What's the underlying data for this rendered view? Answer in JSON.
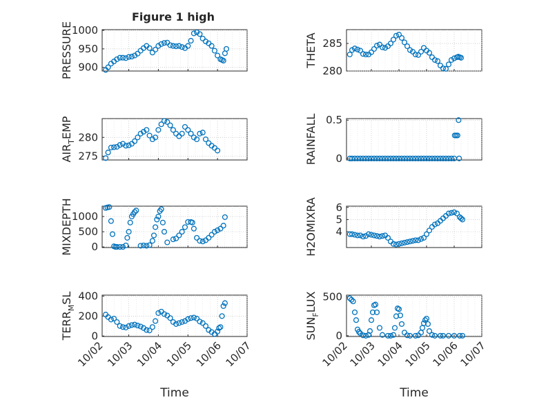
{
  "figure_title": "Figure 1 high",
  "chart_data": [
    {
      "type": "scatter",
      "id": "pressure",
      "ylabel": "PRESSURE",
      "ylabel_sub": "",
      "ylabel_tail": "",
      "yticks": [
        900,
        950,
        1000
      ],
      "ytick_labels": [
        "900",
        "950",
        "1000"
      ],
      "ylim": [
        890,
        1002
      ],
      "xlim": [
        0.1,
        5
      ],
      "x_tick_labels_shown": false,
      "x": [
        0.22,
        0.3,
        0.4,
        0.5,
        0.6,
        0.7,
        0.8,
        0.9,
        1.0,
        1.1,
        1.2,
        1.3,
        1.4,
        1.5,
        1.6,
        1.7,
        1.8,
        1.9,
        2.0,
        2.1,
        2.2,
        2.3,
        2.4,
        2.5,
        2.6,
        2.7,
        2.8,
        2.9,
        3.0,
        3.1,
        3.2,
        3.3,
        3.4,
        3.5,
        3.6,
        3.7,
        3.8,
        3.9,
        4.0,
        4.1,
        4.15,
        4.2,
        4.25,
        4.3
      ],
      "y": [
        893,
        900,
        910,
        916,
        922,
        926,
        926,
        925,
        928,
        929,
        932,
        937,
        945,
        952,
        958,
        952,
        940,
        948,
        958,
        963,
        966,
        967,
        960,
        958,
        957,
        958,
        955,
        952,
        958,
        972,
        992,
        995,
        990,
        978,
        970,
        965,
        958,
        945,
        932,
        922,
        920,
        918,
        938,
        950
      ]
    },
    {
      "type": "scatter",
      "id": "theta",
      "ylabel": "THETA",
      "ylabel_sub": "",
      "ylabel_tail": "",
      "yticks": [
        280,
        285
      ],
      "ytick_labels": [
        "280",
        "285"
      ],
      "ylim": [
        280,
        287.5
      ],
      "xlim": [
        0.1,
        5
      ],
      "x_tick_labels_shown": false,
      "x": [
        0.22,
        0.3,
        0.4,
        0.5,
        0.6,
        0.7,
        0.8,
        0.9,
        1.0,
        1.1,
        1.2,
        1.3,
        1.4,
        1.5,
        1.6,
        1.7,
        1.8,
        1.9,
        2.0,
        2.1,
        2.2,
        2.3,
        2.4,
        2.5,
        2.6,
        2.7,
        2.8,
        2.9,
        3.0,
        3.1,
        3.2,
        3.3,
        3.4,
        3.5,
        3.6,
        3.7,
        3.8,
        3.9,
        4.0,
        4.1,
        4.15,
        4.2,
        4.25
      ],
      "y": [
        283,
        283.8,
        284.1,
        283.9,
        283.7,
        283.1,
        283,
        283,
        283.4,
        284,
        284.6,
        284.8,
        284.3,
        284.2,
        284.5,
        285,
        285.7,
        286.4,
        286.6,
        286,
        285.2,
        284.5,
        283.8,
        283.5,
        283,
        282.9,
        283.5,
        284.2,
        283.7,
        283.3,
        282.5,
        282,
        281.8,
        281,
        280.5,
        280.4,
        281.2,
        282,
        282.3,
        282.5,
        282.6,
        282.5,
        282.4
      ]
    },
    {
      "type": "scatter",
      "id": "air_temp",
      "ylabel": "AIR",
      "ylabel_sub": "T",
      "ylabel_tail": "EMP",
      "yticks": [
        275,
        280
      ],
      "ytick_labels": [
        "275",
        "280"
      ],
      "ylim": [
        274,
        285
      ],
      "xlim": [
        0.1,
        5
      ],
      "x_tick_labels_shown": false,
      "x": [
        0.22,
        0.3,
        0.4,
        0.5,
        0.6,
        0.7,
        0.8,
        0.9,
        1.0,
        1.1,
        1.2,
        1.3,
        1.4,
        1.5,
        1.6,
        1.7,
        1.8,
        1.9,
        2.0,
        2.1,
        2.2,
        2.3,
        2.4,
        2.5,
        2.6,
        2.7,
        2.8,
        2.9,
        3.0,
        3.1,
        3.2,
        3.3,
        3.4,
        3.5,
        3.6,
        3.7,
        3.8,
        3.9,
        4.0
      ],
      "y": [
        274.5,
        276,
        277.3,
        277.4,
        277.5,
        278,
        278.3,
        277.8,
        277.9,
        278.3,
        279,
        280,
        281,
        281.5,
        282,
        280.5,
        279.5,
        280,
        282,
        283.5,
        284.4,
        284.1,
        283.2,
        282,
        281,
        280.3,
        281,
        282.8,
        282,
        281,
        280,
        279.5,
        281,
        281.3,
        279.5,
        278.5,
        277.8,
        277.2,
        276.5
      ]
    },
    {
      "type": "scatter",
      "id": "rainfall",
      "ylabel": "RAINFALL",
      "ylabel_sub": "",
      "ylabel_tail": "",
      "yticks": [
        0,
        0.5
      ],
      "ytick_labels": [
        "0",
        "0.5"
      ],
      "ylim": [
        -0.02,
        0.52
      ],
      "xlim": [
        0.1,
        5
      ],
      "x_tick_labels_shown": false,
      "x": [
        0.22,
        0.3,
        0.4,
        0.5,
        0.6,
        0.7,
        0.8,
        0.9,
        1.0,
        1.1,
        1.2,
        1.3,
        1.4,
        1.5,
        1.6,
        1.7,
        1.8,
        1.9,
        2.0,
        2.1,
        2.2,
        2.3,
        2.4,
        2.5,
        2.6,
        2.7,
        2.8,
        2.9,
        3.0,
        3.1,
        3.2,
        3.3,
        3.4,
        3.5,
        3.6,
        3.7,
        3.8,
        3.9,
        4.0,
        4.02,
        4.07,
        4.12,
        4.16,
        4.18
      ],
      "y": [
        0,
        0,
        0,
        0,
        0,
        0,
        0,
        0,
        0,
        0,
        0,
        0,
        0,
        0,
        0,
        0,
        0,
        0,
        0,
        0,
        0,
        0,
        0,
        0,
        0,
        0,
        0,
        0,
        0,
        0,
        0,
        0,
        0,
        0,
        0,
        0,
        0,
        0,
        0,
        0.3,
        0.3,
        0.3,
        0.5,
        0
      ]
    },
    {
      "type": "scatter",
      "id": "mixdepth",
      "ylabel": "MIXDEPTH",
      "ylabel_sub": "",
      "ylabel_tail": "",
      "yticks": [
        0,
        500,
        1000
      ],
      "ytick_labels": [
        "0",
        "500",
        "1000"
      ],
      "ylim": [
        -20,
        1340
      ],
      "xlim": [
        0.1,
        5
      ],
      "x_tick_labels_shown": false,
      "x": [
        0.22,
        0.28,
        0.34,
        0.4,
        0.45,
        0.5,
        0.55,
        0.6,
        0.7,
        0.8,
        0.9,
        0.95,
        1.0,
        1.05,
        1.1,
        1.15,
        1.2,
        1.25,
        1.4,
        1.5,
        1.6,
        1.7,
        1.8,
        1.85,
        1.9,
        1.95,
        2.0,
        2.05,
        2.1,
        2.15,
        2.2,
        2.3,
        2.5,
        2.6,
        2.7,
        2.8,
        2.9,
        3.0,
        3.1,
        3.15,
        3.2,
        3.3,
        3.4,
        3.5,
        3.6,
        3.7,
        3.8,
        3.9,
        4.0,
        4.1,
        4.2,
        4.25
      ],
      "y": [
        1280,
        1300,
        1310,
        850,
        420,
        20,
        0,
        0,
        0,
        0,
        50,
        300,
        500,
        800,
        1000,
        1080,
        1150,
        1200,
        40,
        50,
        40,
        60,
        200,
        380,
        650,
        900,
        1000,
        1180,
        1240,
        800,
        500,
        150,
        250,
        280,
        380,
        500,
        650,
        820,
        820,
        800,
        600,
        300,
        200,
        180,
        220,
        300,
        400,
        500,
        550,
        600,
        700,
        980
      ]
    },
    {
      "type": "scatter",
      "id": "h2omixra",
      "ylabel": "H2OMIXRA",
      "ylabel_sub": "",
      "ylabel_tail": "",
      "yticks": [
        4,
        5,
        6
      ],
      "ytick_labels": [
        "4",
        "5",
        "6"
      ],
      "ylim": [
        2.7,
        6.1
      ],
      "xlim": [
        0.1,
        5
      ],
      "x_tick_labels_shown": false,
      "x": [
        0.22,
        0.3,
        0.4,
        0.5,
        0.6,
        0.7,
        0.8,
        0.9,
        1.0,
        1.1,
        1.2,
        1.3,
        1.4,
        1.5,
        1.6,
        1.7,
        1.8,
        1.9,
        2.0,
        2.1,
        2.2,
        2.3,
        2.4,
        2.5,
        2.6,
        2.7,
        2.8,
        2.9,
        3.0,
        3.1,
        3.2,
        3.3,
        3.4,
        3.5,
        3.6,
        3.7,
        3.8,
        3.9,
        4.0,
        4.1,
        4.2,
        4.25,
        4.3
      ],
      "y": [
        3.8,
        3.8,
        3.75,
        3.7,
        3.7,
        3.6,
        3.65,
        3.8,
        3.75,
        3.7,
        3.65,
        3.6,
        3.65,
        3.7,
        3.5,
        3.2,
        3.0,
        2.95,
        3.0,
        3.05,
        3.1,
        3.15,
        3.2,
        3.25,
        3.3,
        3.3,
        3.4,
        3.5,
        3.8,
        4.1,
        4.4,
        4.6,
        4.7,
        4.9,
        5.1,
        5.3,
        5.5,
        5.55,
        5.6,
        5.5,
        5.2,
        5.1,
        5.0
      ]
    },
    {
      "type": "scatter",
      "id": "terr_msl",
      "ylabel": "TERR",
      "ylabel_sub": "M",
      "ylabel_tail": "SL",
      "yticks": [
        0,
        200,
        400
      ],
      "ytick_labels": [
        "0",
        "200",
        "400"
      ],
      "ylim": [
        -5,
        410
      ],
      "xlim": [
        0.1,
        5
      ],
      "x_tick_labels_shown": true,
      "xticks": [
        0,
        1,
        2,
        3,
        4,
        5
      ],
      "xtick_labels": [
        "10/02",
        "10/03",
        "10/04",
        "10/05",
        "10/06",
        "10/07"
      ],
      "xlabel": "Time",
      "x": [
        0.22,
        0.3,
        0.4,
        0.5,
        0.6,
        0.7,
        0.8,
        0.9,
        1.0,
        1.1,
        1.2,
        1.3,
        1.4,
        1.5,
        1.6,
        1.7,
        1.8,
        1.9,
        2.0,
        2.1,
        2.2,
        2.3,
        2.4,
        2.5,
        2.6,
        2.7,
        2.8,
        2.9,
        3.0,
        3.1,
        3.2,
        3.3,
        3.4,
        3.5,
        3.6,
        3.7,
        3.8,
        3.9,
        4.0,
        4.05,
        4.1,
        4.15,
        4.2,
        4.25
      ],
      "y": [
        215,
        190,
        165,
        175,
        140,
        100,
        90,
        85,
        100,
        110,
        115,
        105,
        95,
        80,
        60,
        55,
        90,
        150,
        230,
        245,
        220,
        205,
        180,
        140,
        120,
        130,
        140,
        150,
        170,
        180,
        185,
        175,
        145,
        130,
        100,
        60,
        40,
        20,
        45,
        80,
        90,
        200,
        300,
        330
      ]
    },
    {
      "type": "scatter",
      "id": "sun_flux",
      "ylabel": "SUN",
      "ylabel_sub": "F",
      "ylabel_tail": "LUX",
      "yticks": [
        0,
        500
      ],
      "ytick_labels": [
        "0",
        "500"
      ],
      "ylim": [
        -10,
        520
      ],
      "xlim": [
        0.1,
        5
      ],
      "x_tick_labels_shown": true,
      "xticks": [
        0,
        1,
        2,
        3,
        4,
        5
      ],
      "xtick_labels": [
        "10/02",
        "10/03",
        "10/04",
        "10/05",
        "10/06",
        "10/07"
      ],
      "xlabel": "Time",
      "x": [
        0.22,
        0.28,
        0.34,
        0.4,
        0.45,
        0.5,
        0.55,
        0.6,
        0.7,
        0.8,
        0.9,
        0.95,
        1.0,
        1.05,
        1.1,
        1.15,
        1.2,
        1.3,
        1.4,
        1.6,
        1.7,
        1.8,
        1.85,
        1.9,
        1.95,
        2.0,
        2.05,
        2.1,
        2.2,
        2.3,
        2.4,
        2.6,
        2.7,
        2.8,
        2.85,
        2.9,
        2.95,
        3.0,
        3.05,
        3.1,
        3.2,
        3.3,
        3.5,
        3.6,
        3.8,
        4.0,
        4.2,
        4.3
      ],
      "y": [
        480,
        460,
        440,
        300,
        200,
        80,
        50,
        30,
        5,
        0,
        10,
        60,
        200,
        300,
        390,
        400,
        300,
        100,
        10,
        0,
        0,
        10,
        100,
        250,
        350,
        340,
        260,
        150,
        40,
        5,
        0,
        0,
        5,
        40,
        100,
        160,
        200,
        220,
        150,
        60,
        10,
        0,
        0,
        0,
        0,
        0,
        0,
        0
      ]
    }
  ]
}
